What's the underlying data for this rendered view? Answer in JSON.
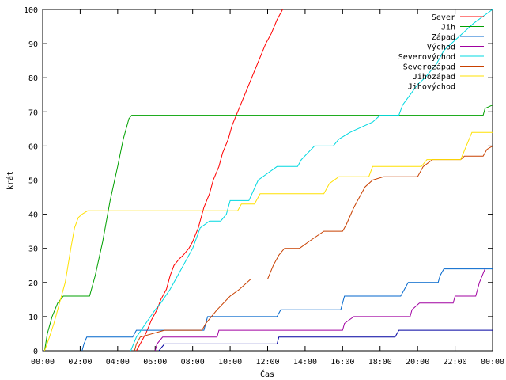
{
  "chart_data": {
    "type": "line",
    "xlabel": "Čas",
    "ylabel": "krát",
    "xlim": [
      0,
      24
    ],
    "ylim": [
      0,
      100
    ],
    "x_ticks": [
      {
        "value": 0,
        "label": "00:00"
      },
      {
        "value": 2,
        "label": "02:00"
      },
      {
        "value": 4,
        "label": "04:00"
      },
      {
        "value": 6,
        "label": "06:00"
      },
      {
        "value": 8,
        "label": "08:00"
      },
      {
        "value": 10,
        "label": "10:00"
      },
      {
        "value": 12,
        "label": "12:00"
      },
      {
        "value": 14,
        "label": "14:00"
      },
      {
        "value": 16,
        "label": "16:00"
      },
      {
        "value": 18,
        "label": "18:00"
      },
      {
        "value": 20,
        "label": "20:00"
      },
      {
        "value": 22,
        "label": "22:00"
      },
      {
        "value": 24,
        "label": "00:00"
      }
    ],
    "y_ticks": [
      {
        "value": 0,
        "label": "0"
      },
      {
        "value": 10,
        "label": "10"
      },
      {
        "value": 20,
        "label": "20"
      },
      {
        "value": 30,
        "label": "30"
      },
      {
        "value": 40,
        "label": "40"
      },
      {
        "value": 50,
        "label": "50"
      },
      {
        "value": 60,
        "label": "60"
      },
      {
        "value": 70,
        "label": "70"
      },
      {
        "value": 80,
        "label": "80"
      },
      {
        "value": 90,
        "label": "90"
      },
      {
        "value": 100,
        "label": "100"
      }
    ],
    "grid": false,
    "legend_position": "top-right",
    "series": [
      {
        "name": "Sever",
        "color": "#ff0000",
        "points": [
          [
            5.0,
            0
          ],
          [
            5.2,
            2
          ],
          [
            5.5,
            5
          ],
          [
            5.8,
            9
          ],
          [
            6.1,
            12
          ],
          [
            6.3,
            15
          ],
          [
            6.6,
            18
          ],
          [
            6.8,
            22
          ],
          [
            7.0,
            25
          ],
          [
            7.3,
            27
          ],
          [
            7.5,
            28
          ],
          [
            7.8,
            30
          ],
          [
            8.0,
            32
          ],
          [
            8.3,
            36
          ],
          [
            8.6,
            42
          ],
          [
            8.9,
            46
          ],
          [
            9.1,
            50
          ],
          [
            9.4,
            54
          ],
          [
            9.6,
            58
          ],
          [
            9.9,
            62
          ],
          [
            10.1,
            66
          ],
          [
            10.4,
            70
          ],
          [
            10.7,
            74
          ],
          [
            11.0,
            78
          ],
          [
            11.3,
            82
          ],
          [
            11.6,
            86
          ],
          [
            11.9,
            90
          ],
          [
            12.2,
            93
          ],
          [
            12.5,
            97
          ],
          [
            12.8,
            100
          ]
        ]
      },
      {
        "name": "Jih",
        "color": "#00a000",
        "points": [
          [
            0.1,
            0
          ],
          [
            0.25,
            5
          ],
          [
            0.5,
            10
          ],
          [
            0.8,
            14
          ],
          [
            1.1,
            16
          ],
          [
            2.5,
            16
          ],
          [
            2.8,
            22
          ],
          [
            3.2,
            32
          ],
          [
            3.6,
            44
          ],
          [
            4.0,
            54
          ],
          [
            4.3,
            62
          ],
          [
            4.6,
            68
          ],
          [
            4.75,
            69
          ],
          [
            23.5,
            69
          ],
          [
            23.6,
            71
          ],
          [
            24,
            72
          ]
        ]
      },
      {
        "name": "Západ",
        "color": "#0066cc",
        "points": [
          [
            2.1,
            0
          ],
          [
            2.2,
            2
          ],
          [
            2.35,
            4
          ],
          [
            4.8,
            4
          ],
          [
            5.0,
            6
          ],
          [
            8.6,
            6
          ],
          [
            8.8,
            10
          ],
          [
            12.5,
            10
          ],
          [
            12.7,
            12
          ],
          [
            15.9,
            12
          ],
          [
            16.0,
            14
          ],
          [
            16.1,
            16
          ],
          [
            19.1,
            16
          ],
          [
            19.3,
            18
          ],
          [
            19.5,
            20
          ],
          [
            21.1,
            20
          ],
          [
            21.2,
            22
          ],
          [
            21.4,
            24
          ],
          [
            24,
            24
          ]
        ]
      },
      {
        "name": "Východ",
        "color": "#a000a0",
        "points": [
          [
            6.0,
            0
          ],
          [
            6.1,
            2
          ],
          [
            6.4,
            4
          ],
          [
            9.3,
            4
          ],
          [
            9.4,
            6
          ],
          [
            16.0,
            6
          ],
          [
            16.1,
            8
          ],
          [
            16.6,
            10
          ],
          [
            19.6,
            10
          ],
          [
            19.7,
            12
          ],
          [
            20.1,
            14
          ],
          [
            21.9,
            14
          ],
          [
            22.0,
            16
          ],
          [
            23.1,
            16
          ],
          [
            23.3,
            20
          ],
          [
            23.6,
            24
          ]
        ]
      },
      {
        "name": "Severovýchod",
        "color": "#00d8e0",
        "points": [
          [
            4.7,
            0
          ],
          [
            5.0,
            4
          ],
          [
            5.5,
            8
          ],
          [
            6.0,
            12
          ],
          [
            6.3,
            14
          ],
          [
            6.8,
            18
          ],
          [
            7.2,
            22
          ],
          [
            7.6,
            26
          ],
          [
            8.0,
            30
          ],
          [
            8.4,
            36
          ],
          [
            8.9,
            38
          ],
          [
            9.5,
            38
          ],
          [
            9.8,
            40
          ],
          [
            10.0,
            44
          ],
          [
            11.0,
            44
          ],
          [
            11.5,
            50
          ],
          [
            12.0,
            52
          ],
          [
            12.5,
            54
          ],
          [
            13.6,
            54
          ],
          [
            13.8,
            56
          ],
          [
            14.5,
            60
          ],
          [
            15.5,
            60
          ],
          [
            15.8,
            62
          ],
          [
            16.4,
            64
          ],
          [
            16.8,
            65
          ],
          [
            17.6,
            67
          ],
          [
            18.0,
            69
          ],
          [
            19.0,
            69
          ],
          [
            19.2,
            72
          ],
          [
            19.6,
            75
          ],
          [
            20.0,
            78
          ],
          [
            20.4,
            80
          ],
          [
            20.7,
            82
          ],
          [
            21.0,
            84
          ],
          [
            21.4,
            88
          ],
          [
            21.8,
            90
          ],
          [
            22.2,
            92
          ],
          [
            22.6,
            94
          ],
          [
            23.0,
            96
          ],
          [
            23.5,
            98
          ],
          [
            24.0,
            100
          ]
        ]
      },
      {
        "name": "Severozápad",
        "color": "#c84000",
        "points": [
          [
            4.9,
            0
          ],
          [
            5.0,
            2
          ],
          [
            5.2,
            4
          ],
          [
            6.5,
            6
          ],
          [
            8.5,
            6
          ],
          [
            8.7,
            8
          ],
          [
            9.3,
            12
          ],
          [
            10.0,
            16
          ],
          [
            10.5,
            18
          ],
          [
            11.1,
            21
          ],
          [
            12.0,
            21
          ],
          [
            12.3,
            25
          ],
          [
            12.6,
            28
          ],
          [
            12.9,
            30
          ],
          [
            13.7,
            30
          ],
          [
            14.2,
            32
          ],
          [
            15.0,
            35
          ],
          [
            16.0,
            35
          ],
          [
            16.2,
            37
          ],
          [
            16.6,
            42
          ],
          [
            17.0,
            46
          ],
          [
            17.2,
            48
          ],
          [
            17.6,
            50
          ],
          [
            18.2,
            51
          ],
          [
            20.0,
            51
          ],
          [
            20.3,
            54
          ],
          [
            20.8,
            56
          ],
          [
            22.3,
            56
          ],
          [
            22.5,
            57
          ],
          [
            23.5,
            57
          ],
          [
            23.7,
            59
          ],
          [
            24.0,
            60
          ]
        ]
      },
      {
        "name": "Jihozápad",
        "color": "#ffe000",
        "points": [
          [
            0.1,
            0
          ],
          [
            0.3,
            3
          ],
          [
            0.6,
            8
          ],
          [
            0.9,
            14
          ],
          [
            1.2,
            20
          ],
          [
            1.5,
            30
          ],
          [
            1.7,
            36
          ],
          [
            1.9,
            39
          ],
          [
            2.1,
            40
          ],
          [
            2.4,
            41
          ],
          [
            10.4,
            41
          ],
          [
            10.6,
            43
          ],
          [
            11.3,
            43
          ],
          [
            11.6,
            46
          ],
          [
            15.0,
            46
          ],
          [
            15.3,
            49
          ],
          [
            15.8,
            51
          ],
          [
            17.4,
            51
          ],
          [
            17.6,
            54
          ],
          [
            20.2,
            54
          ],
          [
            20.5,
            56
          ],
          [
            22.3,
            56
          ],
          [
            22.6,
            60
          ],
          [
            22.9,
            64
          ],
          [
            24.0,
            64
          ]
        ]
      },
      {
        "name": "Jihovýchod",
        "color": "#0000a0",
        "points": [
          [
            6.2,
            0
          ],
          [
            6.35,
            1
          ],
          [
            6.5,
            2
          ],
          [
            12.5,
            2
          ],
          [
            12.6,
            4
          ],
          [
            18.8,
            4
          ],
          [
            19.0,
            6
          ],
          [
            24.0,
            6
          ]
        ]
      }
    ]
  }
}
